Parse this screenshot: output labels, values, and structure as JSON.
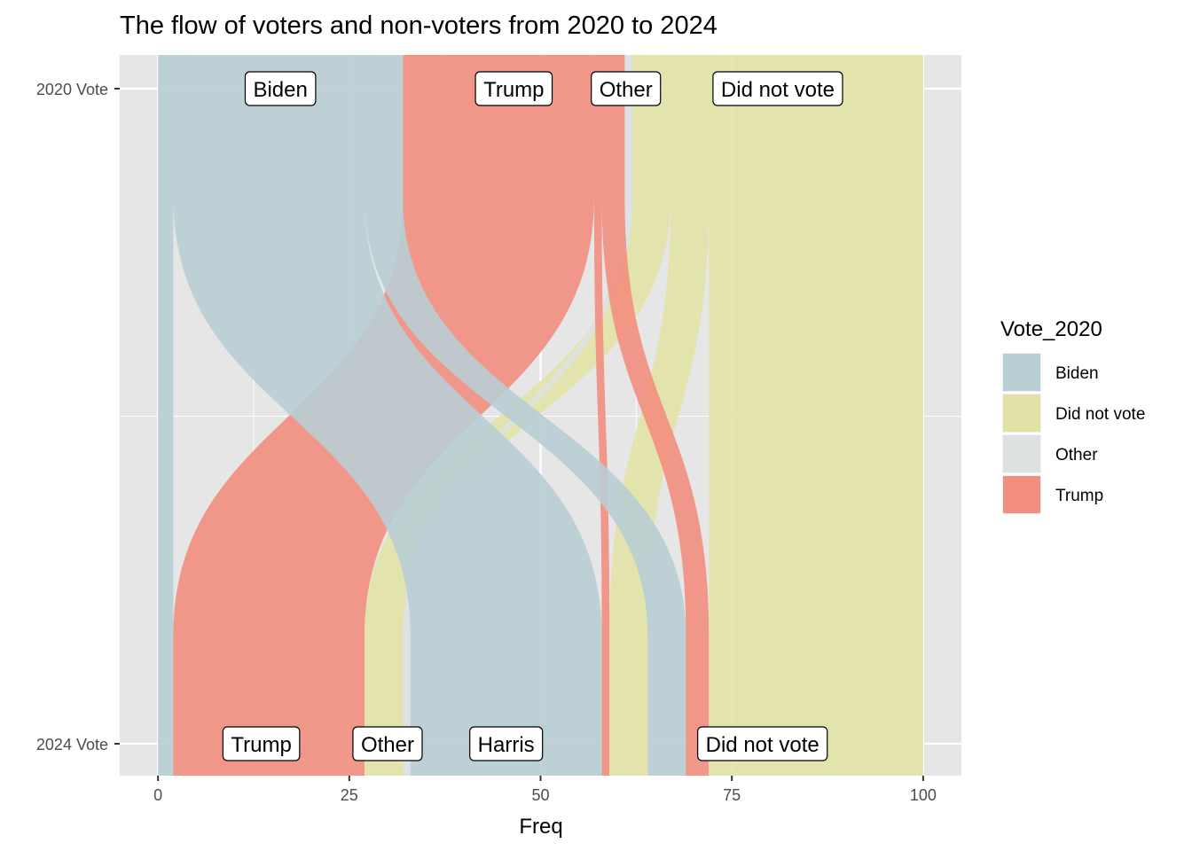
{
  "chart_data": {
    "type": "alluvial",
    "title": "The flow of voters and non-voters from 2020 to 2024",
    "xlabel": "Freq",
    "ylabel": "",
    "xlim": [
      -5,
      105
    ],
    "x_ticks": [
      0,
      25,
      50,
      75,
      100
    ],
    "x_tick_labels": [
      "0",
      "25",
      "50",
      "75",
      "100"
    ],
    "axes": [
      "2020 Vote",
      "2024 Vote"
    ],
    "grid": true,
    "strata": {
      "2020 Vote": [
        {
          "label": "Biden",
          "from": 0,
          "to": 32
        },
        {
          "label": "Trump",
          "from": 32,
          "to": 61
        },
        {
          "label": "Other",
          "from": 61,
          "to": 62
        },
        {
          "label": "Did not vote",
          "from": 62,
          "to": 100
        }
      ],
      "2024 Vote": [
        {
          "label": "Trump",
          "from": 0,
          "to": 27
        },
        {
          "label": "Other",
          "from": 27,
          "to": 33
        },
        {
          "label": "Harris",
          "from": 33,
          "to": 58
        },
        {
          "label": "Did not vote",
          "from": 58,
          "to": 100
        }
      ]
    },
    "flows": [
      {
        "from_2020": "Biden",
        "to_2024": "Trump",
        "freq": 2,
        "top": [
          0,
          2
        ],
        "bottom": [
          0,
          2
        ]
      },
      {
        "from_2020": "Trump",
        "to_2024": "Trump",
        "freq": 25,
        "top": [
          32,
          57
        ],
        "bottom": [
          2,
          27
        ]
      },
      {
        "from_2020": "Did not vote",
        "to_2024": "Other",
        "freq": 5,
        "top": [
          62,
          67
        ],
        "bottom": [
          27,
          32
        ]
      },
      {
        "from_2020": "Other",
        "to_2024": "Other",
        "freq": 1,
        "top": [
          61,
          62
        ],
        "bottom": [
          32,
          33
        ]
      },
      {
        "from_2020": "Biden",
        "to_2024": "Harris",
        "freq": 25,
        "top": [
          2,
          27
        ],
        "bottom": [
          33,
          58
        ]
      },
      {
        "from_2020": "Trump",
        "to_2024": "Did not vote",
        "freq": 1,
        "top": [
          57,
          58
        ],
        "bottom": [
          58,
          59
        ]
      },
      {
        "from_2020": "Did not vote",
        "to_2024": "Did not vote",
        "freq": 5,
        "top": [
          67,
          72
        ],
        "bottom": [
          59,
          64
        ]
      },
      {
        "from_2020": "Biden",
        "to_2024": "Did not vote",
        "freq": 5,
        "top": [
          27,
          32
        ],
        "bottom": [
          64,
          69
        ]
      },
      {
        "from_2020": "Trump",
        "to_2024": "Did not vote",
        "freq": 3,
        "top": [
          58,
          61
        ],
        "bottom": [
          69,
          72
        ]
      },
      {
        "from_2020": "Did not vote",
        "to_2024": "Did not vote",
        "freq": 28,
        "top": [
          72,
          100
        ],
        "bottom": [
          72,
          100
        ]
      }
    ],
    "legend": {
      "title": "Vote_2020",
      "placement": "right",
      "entries": [
        {
          "label": "Biden",
          "color": "#b8cdd4"
        },
        {
          "label": "Did not vote",
          "color": "#e2e2a6"
        },
        {
          "label": "Other",
          "color": "#dce1e2"
        },
        {
          "label": "Trump",
          "color": "#f28e80"
        }
      ]
    },
    "colors": {
      "Biden": "#b8cdd4",
      "Did not vote": "#e2e2a6",
      "Other": "#dce1e2",
      "Trump": "#f28e80",
      "panel": "#e6e6e6",
      "grid": "#ffffff"
    }
  }
}
